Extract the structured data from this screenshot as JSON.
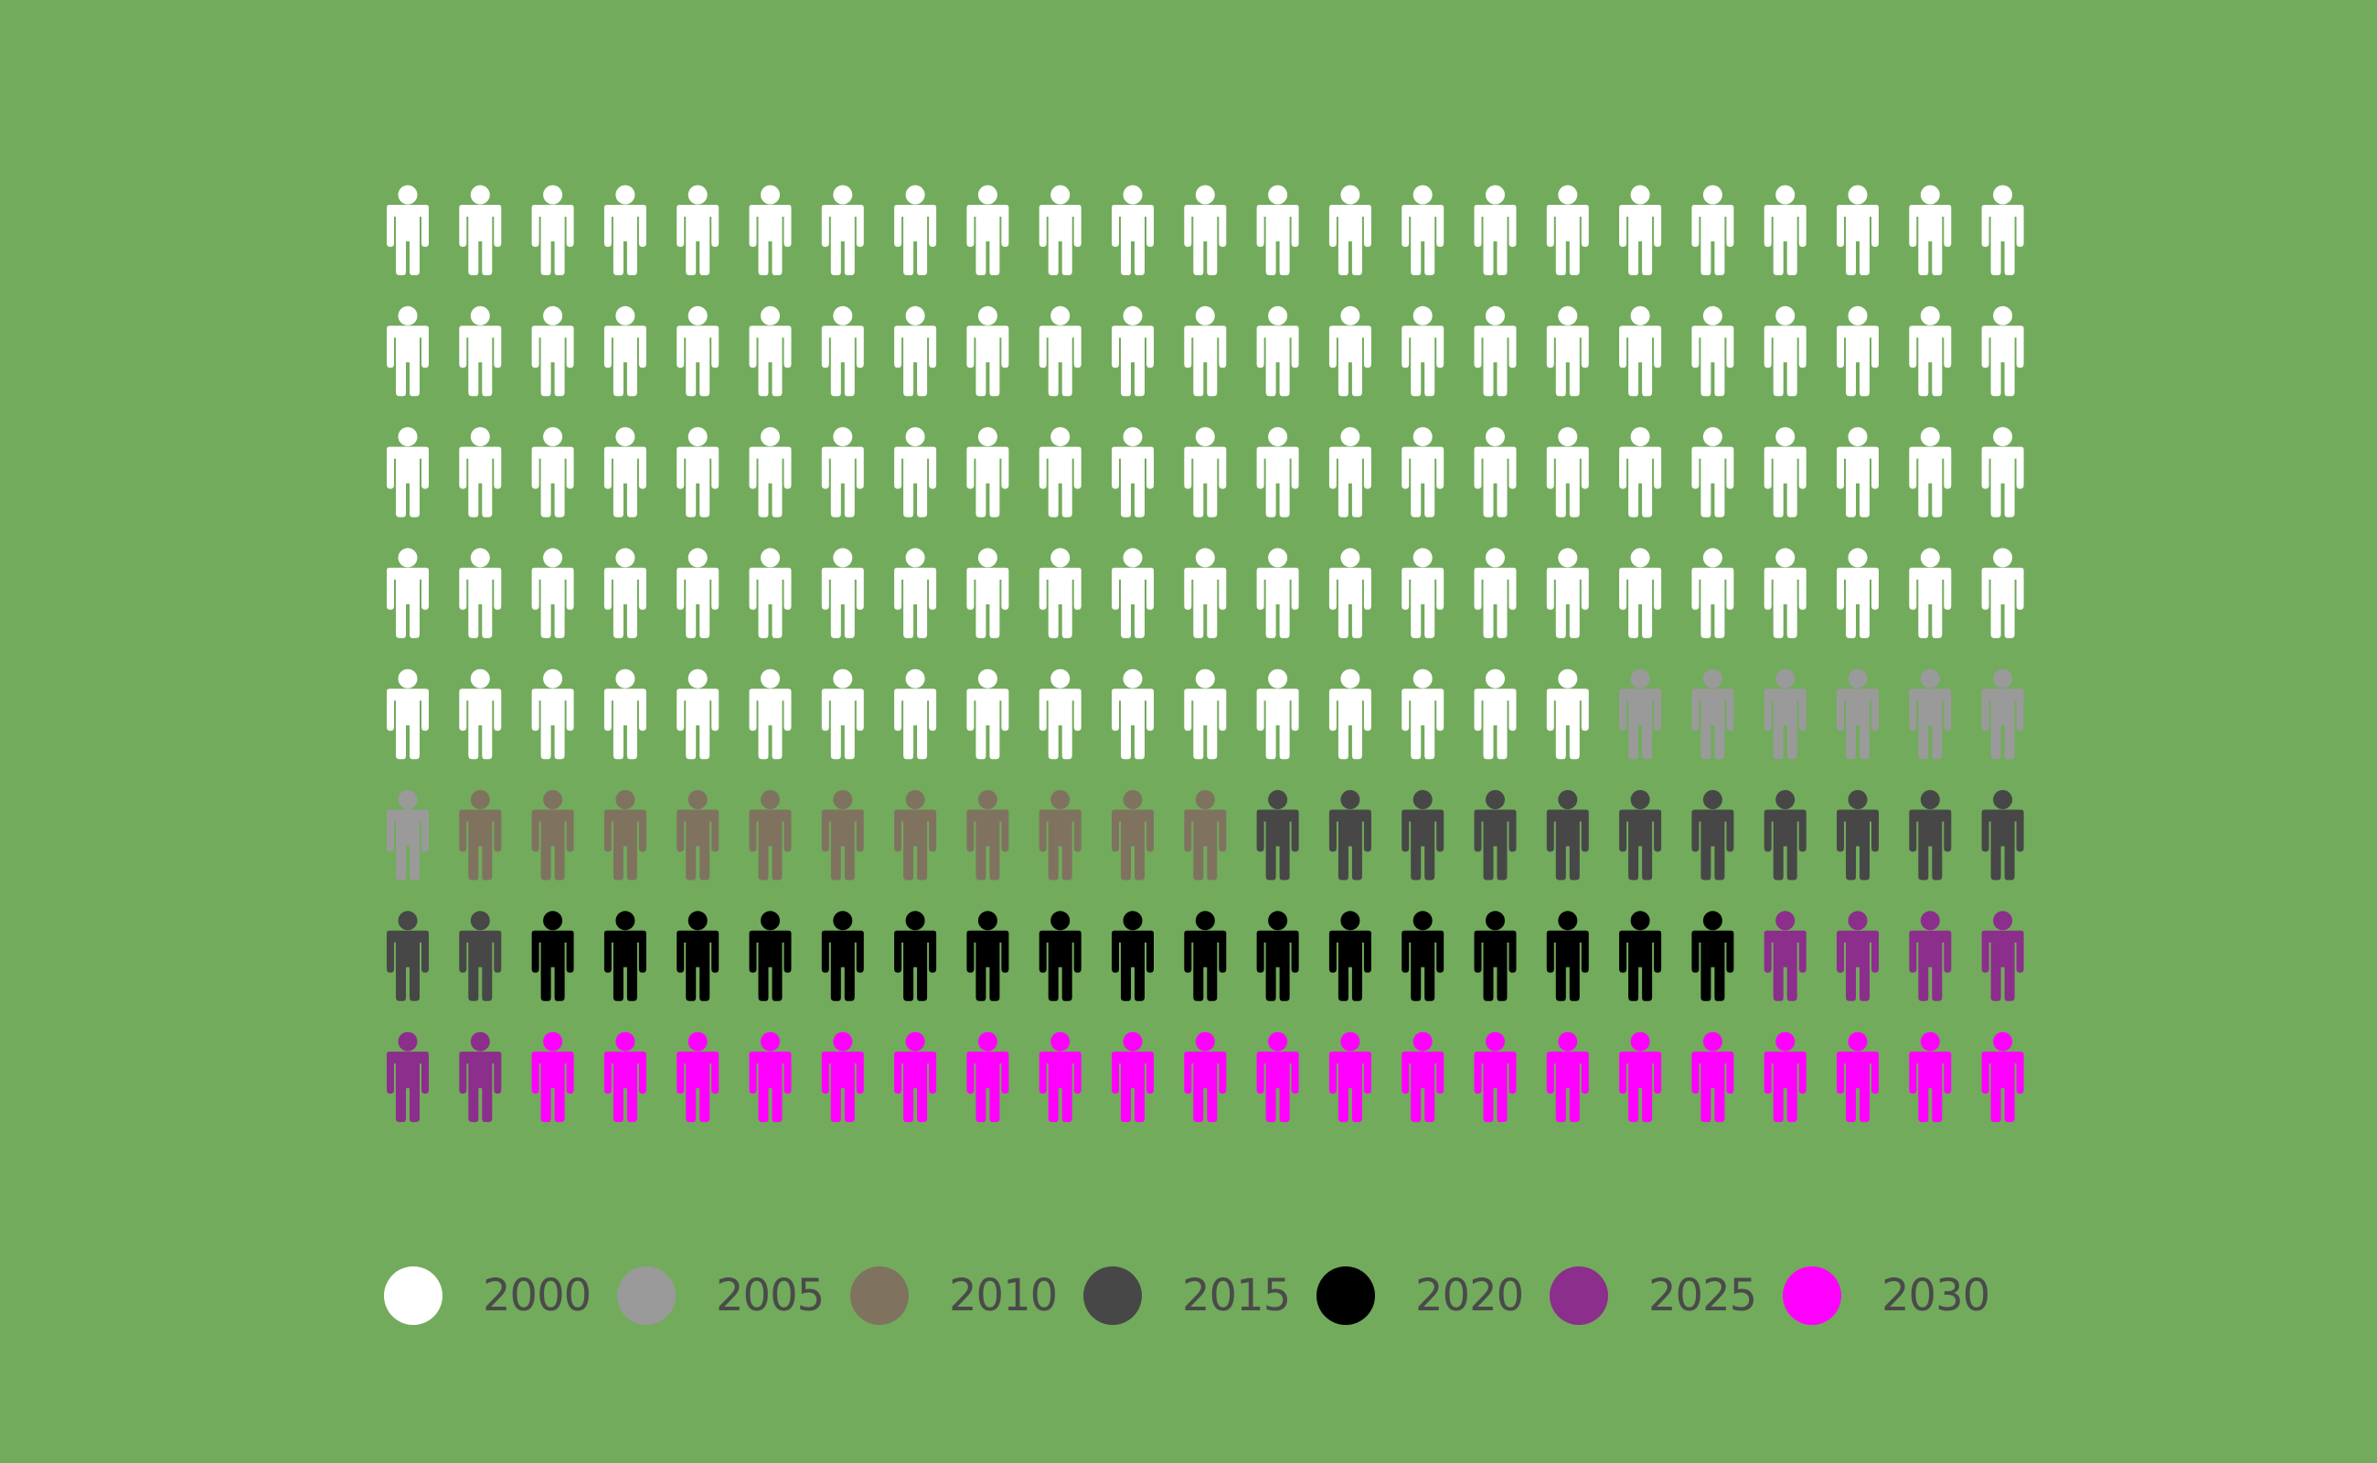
{
  "chart_data": {
    "type": "pictogram",
    "icon": "person-icon",
    "columns": 23,
    "series": [
      {
        "name": "2000",
        "count": 109,
        "color": "#ffffff"
      },
      {
        "name": "2005",
        "count": 7,
        "color": "#9a9a9a"
      },
      {
        "name": "2010",
        "count": 11,
        "color": "#7f7360"
      },
      {
        "name": "2015",
        "count": 13,
        "color": "#474747"
      },
      {
        "name": "2020",
        "count": 17,
        "color": "#000000"
      },
      {
        "name": "2025",
        "count": 6,
        "color": "#8c2e8c"
      },
      {
        "name": "2030",
        "count": 21,
        "color": "#ff00ff"
      }
    ],
    "legend_position": "bottom"
  }
}
